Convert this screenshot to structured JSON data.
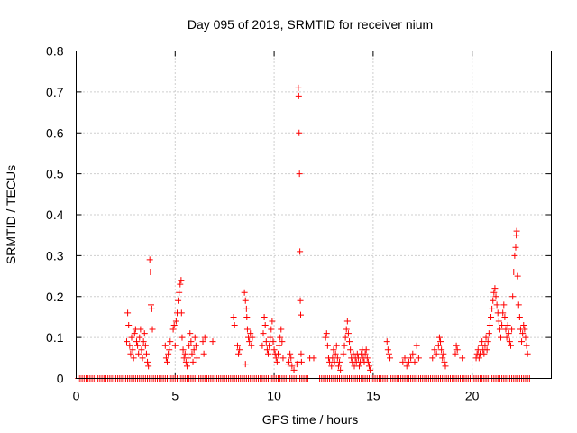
{
  "chart_data": {
    "type": "scatter",
    "title": "Day 095 of 2019, SRMTID for receiver nium",
    "xlabel": "GPS time / hours",
    "ylabel": "SRMTID / TECUs",
    "xlim": [
      0,
      24
    ],
    "ylim": [
      0,
      0.8
    ],
    "xticks": [
      0,
      5,
      10,
      15,
      20
    ],
    "yticks": [
      0,
      0.1,
      0.2,
      0.3,
      0.4,
      0.5,
      0.6,
      0.7,
      0.8
    ],
    "xtick_labels": [
      "0",
      "5",
      "10",
      "15",
      "20"
    ],
    "ytick_labels": [
      "0",
      "0.1",
      "0.2",
      "0.3",
      "0.4",
      "0.5",
      "0.6",
      "0.7",
      "0.8"
    ],
    "grid": true,
    "marker": "+",
    "color": "#ff0000",
    "series": [
      {
        "name": "SRMTID",
        "zero_baseline_ranges": [
          [
            0.1,
            11.7
          ],
          [
            12.3,
            22.9
          ]
        ],
        "points": [
          [
            2.55,
            0.09
          ],
          [
            2.6,
            0.16
          ],
          [
            2.65,
            0.13
          ],
          [
            2.7,
            0.08
          ],
          [
            2.75,
            0.06
          ],
          [
            2.8,
            0.1
          ],
          [
            2.85,
            0.07
          ],
          [
            2.9,
            0.05
          ],
          [
            2.95,
            0.11
          ],
          [
            3.0,
            0.12
          ],
          [
            3.05,
            0.09
          ],
          [
            3.1,
            0.08
          ],
          [
            3.15,
            0.06
          ],
          [
            3.2,
            0.1
          ],
          [
            3.25,
            0.12
          ],
          [
            3.3,
            0.07
          ],
          [
            3.35,
            0.05
          ],
          [
            3.4,
            0.09
          ],
          [
            3.45,
            0.11
          ],
          [
            3.5,
            0.08
          ],
          [
            3.55,
            0.06
          ],
          [
            3.6,
            0.04
          ],
          [
            3.65,
            0.03
          ],
          [
            3.72,
            0.29
          ],
          [
            3.75,
            0.26
          ],
          [
            3.78,
            0.18
          ],
          [
            3.82,
            0.17
          ],
          [
            3.85,
            0.12
          ],
          [
            4.5,
            0.08
          ],
          [
            4.55,
            0.05
          ],
          [
            4.6,
            0.04
          ],
          [
            4.65,
            0.06
          ],
          [
            4.7,
            0.07
          ],
          [
            4.75,
            0.09
          ],
          [
            4.9,
            0.12
          ],
          [
            4.95,
            0.13
          ],
          [
            5.0,
            0.08
          ],
          [
            5.05,
            0.14
          ],
          [
            5.1,
            0.16
          ],
          [
            5.15,
            0.19
          ],
          [
            5.2,
            0.21
          ],
          [
            5.25,
            0.23
          ],
          [
            5.3,
            0.24
          ],
          [
            5.32,
            0.16
          ],
          [
            5.35,
            0.1
          ],
          [
            5.4,
            0.07
          ],
          [
            5.45,
            0.05
          ],
          [
            5.5,
            0.06
          ],
          [
            5.55,
            0.04
          ],
          [
            5.6,
            0.03
          ],
          [
            5.65,
            0.05
          ],
          [
            5.7,
            0.08
          ],
          [
            5.75,
            0.11
          ],
          [
            5.8,
            0.09
          ],
          [
            5.85,
            0.06
          ],
          [
            5.9,
            0.04
          ],
          [
            5.95,
            0.07
          ],
          [
            6.0,
            0.1
          ],
          [
            6.05,
            0.08
          ],
          [
            6.1,
            0.05
          ],
          [
            6.4,
            0.09
          ],
          [
            6.45,
            0.06
          ],
          [
            6.5,
            0.1
          ],
          [
            6.9,
            0.09
          ],
          [
            7.95,
            0.15
          ],
          [
            8.0,
            0.13
          ],
          [
            8.15,
            0.08
          ],
          [
            8.2,
            0.06
          ],
          [
            8.25,
            0.07
          ],
          [
            8.5,
            0.21
          ],
          [
            8.55,
            0.19
          ],
          [
            8.6,
            0.17
          ],
          [
            8.62,
            0.15
          ],
          [
            8.65,
            0.12
          ],
          [
            8.7,
            0.1
          ],
          [
            8.75,
            0.09
          ],
          [
            8.8,
            0.11
          ],
          [
            8.85,
            0.08
          ],
          [
            8.9,
            0.1
          ],
          [
            8.55,
            0.035
          ],
          [
            9.4,
            0.08
          ],
          [
            9.45,
            0.11
          ],
          [
            9.5,
            0.15
          ],
          [
            9.55,
            0.13
          ],
          [
            9.6,
            0.09
          ],
          [
            9.65,
            0.07
          ],
          [
            9.7,
            0.06
          ],
          [
            9.75,
            0.08
          ],
          [
            9.8,
            0.1
          ],
          [
            9.85,
            0.12
          ],
          [
            9.9,
            0.14
          ],
          [
            9.95,
            0.09
          ],
          [
            10.0,
            0.07
          ],
          [
            10.05,
            0.06
          ],
          [
            10.1,
            0.05
          ],
          [
            10.15,
            0.04
          ],
          [
            10.2,
            0.06
          ],
          [
            10.25,
            0.08
          ],
          [
            10.3,
            0.1
          ],
          [
            10.35,
            0.12
          ],
          [
            10.4,
            0.09
          ],
          [
            10.45,
            0.05
          ],
          [
            10.7,
            0.035
          ],
          [
            10.75,
            0.04
          ],
          [
            10.8,
            0.06
          ],
          [
            10.85,
            0.05
          ],
          [
            10.9,
            0.03
          ],
          [
            11.0,
            0.02
          ],
          [
            11.15,
            0.035
          ],
          [
            11.2,
            0.04
          ],
          [
            11.22,
            0.71
          ],
          [
            11.24,
            0.69
          ],
          [
            11.26,
            0.6
          ],
          [
            11.28,
            0.5
          ],
          [
            11.3,
            0.31
          ],
          [
            11.32,
            0.19
          ],
          [
            11.34,
            0.155
          ],
          [
            11.36,
            0.06
          ],
          [
            11.38,
            0.04
          ],
          [
            11.8,
            0.05
          ],
          [
            12.0,
            0.05
          ],
          [
            12.6,
            0.1
          ],
          [
            12.65,
            0.11
          ],
          [
            12.7,
            0.08
          ],
          [
            12.75,
            0.05
          ],
          [
            12.8,
            0.04
          ],
          [
            12.9,
            0.03
          ],
          [
            12.95,
            0.05
          ],
          [
            13.0,
            0.07
          ],
          [
            13.05,
            0.04
          ],
          [
            13.1,
            0.06
          ],
          [
            13.15,
            0.08
          ],
          [
            13.2,
            0.05
          ],
          [
            13.25,
            0.03
          ],
          [
            13.3,
            0.04
          ],
          [
            13.35,
            0.02
          ],
          [
            13.5,
            0.06
          ],
          [
            13.55,
            0.08
          ],
          [
            13.6,
            0.1
          ],
          [
            13.65,
            0.12
          ],
          [
            13.7,
            0.14
          ],
          [
            13.75,
            0.11
          ],
          [
            13.8,
            0.09
          ],
          [
            13.85,
            0.07
          ],
          [
            13.9,
            0.05
          ],
          [
            13.95,
            0.04
          ],
          [
            14.0,
            0.06
          ],
          [
            14.05,
            0.03
          ],
          [
            14.1,
            0.05
          ],
          [
            14.15,
            0.04
          ],
          [
            14.2,
            0.06
          ],
          [
            14.25,
            0.05
          ],
          [
            14.3,
            0.03
          ],
          [
            14.35,
            0.04
          ],
          [
            14.4,
            0.06
          ],
          [
            14.45,
            0.07
          ],
          [
            14.5,
            0.05
          ],
          [
            14.55,
            0.04
          ],
          [
            14.6,
            0.06
          ],
          [
            14.65,
            0.07
          ],
          [
            14.7,
            0.05
          ],
          [
            14.75,
            0.04
          ],
          [
            14.8,
            0.03
          ],
          [
            14.85,
            0.02
          ],
          [
            15.7,
            0.09
          ],
          [
            15.75,
            0.07
          ],
          [
            15.8,
            0.06
          ],
          [
            15.85,
            0.05
          ],
          [
            16.5,
            0.04
          ],
          [
            16.6,
            0.05
          ],
          [
            16.7,
            0.03
          ],
          [
            16.8,
            0.04
          ],
          [
            16.9,
            0.05
          ],
          [
            17.0,
            0.06
          ],
          [
            17.1,
            0.04
          ],
          [
            17.2,
            0.08
          ],
          [
            17.3,
            0.05
          ],
          [
            18.0,
            0.05
          ],
          [
            18.1,
            0.07
          ],
          [
            18.2,
            0.06
          ],
          [
            18.3,
            0.08
          ],
          [
            18.35,
            0.1
          ],
          [
            18.4,
            0.09
          ],
          [
            18.45,
            0.07
          ],
          [
            18.5,
            0.05
          ],
          [
            18.55,
            0.06
          ],
          [
            18.6,
            0.04
          ],
          [
            18.65,
            0.03
          ],
          [
            19.15,
            0.06
          ],
          [
            19.2,
            0.08
          ],
          [
            19.25,
            0.07
          ],
          [
            19.5,
            0.05
          ],
          [
            20.2,
            0.05
          ],
          [
            20.25,
            0.06
          ],
          [
            20.3,
            0.07
          ],
          [
            20.35,
            0.05
          ],
          [
            20.4,
            0.06
          ],
          [
            20.45,
            0.08
          ],
          [
            20.5,
            0.09
          ],
          [
            20.55,
            0.07
          ],
          [
            20.6,
            0.06
          ],
          [
            20.65,
            0.08
          ],
          [
            20.7,
            0.1
          ],
          [
            20.75,
            0.07
          ],
          [
            20.8,
            0.09
          ],
          [
            20.85,
            0.11
          ],
          [
            20.9,
            0.13
          ],
          [
            20.95,
            0.15
          ],
          [
            21.0,
            0.17
          ],
          [
            21.05,
            0.19
          ],
          [
            21.1,
            0.21
          ],
          [
            21.15,
            0.22
          ],
          [
            21.2,
            0.2
          ],
          [
            21.25,
            0.18
          ],
          [
            21.3,
            0.16
          ],
          [
            21.35,
            0.14
          ],
          [
            21.4,
            0.12
          ],
          [
            21.45,
            0.1
          ],
          [
            21.5,
            0.13
          ],
          [
            21.55,
            0.16
          ],
          [
            21.6,
            0.18
          ],
          [
            21.65,
            0.15
          ],
          [
            21.7,
            0.12
          ],
          [
            21.75,
            0.1
          ],
          [
            21.8,
            0.13
          ],
          [
            21.85,
            0.11
          ],
          [
            21.9,
            0.09
          ],
          [
            21.95,
            0.08
          ],
          [
            22.0,
            0.12
          ],
          [
            22.05,
            0.2
          ],
          [
            22.1,
            0.26
          ],
          [
            22.15,
            0.3
          ],
          [
            22.2,
            0.32
          ],
          [
            22.23,
            0.35
          ],
          [
            22.25,
            0.36
          ],
          [
            22.3,
            0.25
          ],
          [
            22.35,
            0.18
          ],
          [
            22.4,
            0.15
          ],
          [
            22.45,
            0.12
          ],
          [
            22.5,
            0.09
          ],
          [
            22.55,
            0.11
          ],
          [
            22.6,
            0.13
          ],
          [
            22.65,
            0.12
          ],
          [
            22.7,
            0.1
          ],
          [
            22.75,
            0.08
          ],
          [
            22.8,
            0.06
          ]
        ]
      }
    ]
  }
}
